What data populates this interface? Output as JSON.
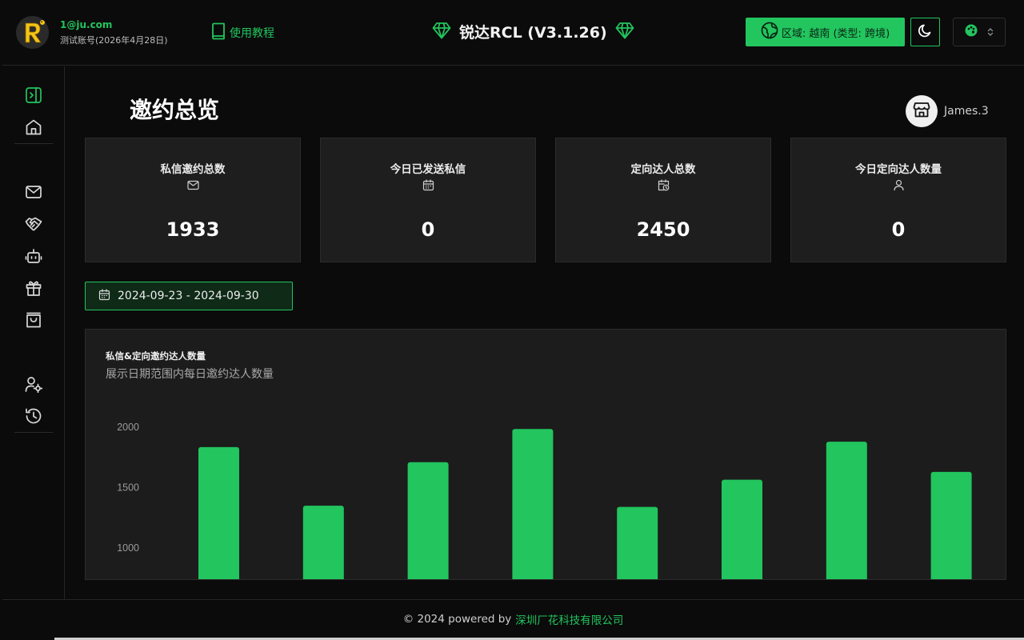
{
  "header": {
    "account_email": "1@ju.com",
    "account_sub": "测试账号(2026年4月28日)",
    "tutorial_label": "使用教程",
    "brand_title": "锐达RCL (V3.1.26)",
    "region_label": "区域: 越南 (类型: 跨境)",
    "logo_letter": "R"
  },
  "sidebar": {
    "icons": [
      "panel-toggle-icon",
      "home-icon",
      "mail-icon",
      "handshake-icon",
      "bot-icon",
      "gift-icon",
      "shopping-bag-icon",
      "user-settings-icon",
      "history-icon"
    ]
  },
  "main": {
    "page_title": "邀约总览",
    "user_name": "James.3",
    "stats": [
      {
        "label": "私信邀约总数",
        "value": "1933",
        "icon": "mail-icon"
      },
      {
        "label": "今日已发送私信",
        "value": "0",
        "icon": "calendar-icon"
      },
      {
        "label": "定向达人总数",
        "value": "2450",
        "icon": "calendar-clock-icon"
      },
      {
        "label": "今日定向达人数量",
        "value": "0",
        "icon": "user-icon"
      }
    ],
    "date_range": "2024-09-23 - 2024-09-30"
  },
  "chart": {
    "title": "私信&定向邀约达人数量",
    "subtitle": "展示日期范围内每日邀约达人数量"
  },
  "chart_data": {
    "type": "bar",
    "title": "私信&定向邀约达人数量",
    "subtitle": "展示日期范围内每日邀约达人数量",
    "y_ticks": [
      1000,
      1500,
      2000
    ],
    "values": [
      1835,
      1350,
      1710,
      1985,
      1340,
      1565,
      1880,
      1630
    ],
    "color": "#22c55e"
  },
  "footer": {
    "text": "© 2024 powered by",
    "link": "深圳厂花科技有限公司"
  },
  "colors": {
    "accent": "#22c55e",
    "background": "#0b0b0b",
    "card": "#1e1e1e"
  }
}
